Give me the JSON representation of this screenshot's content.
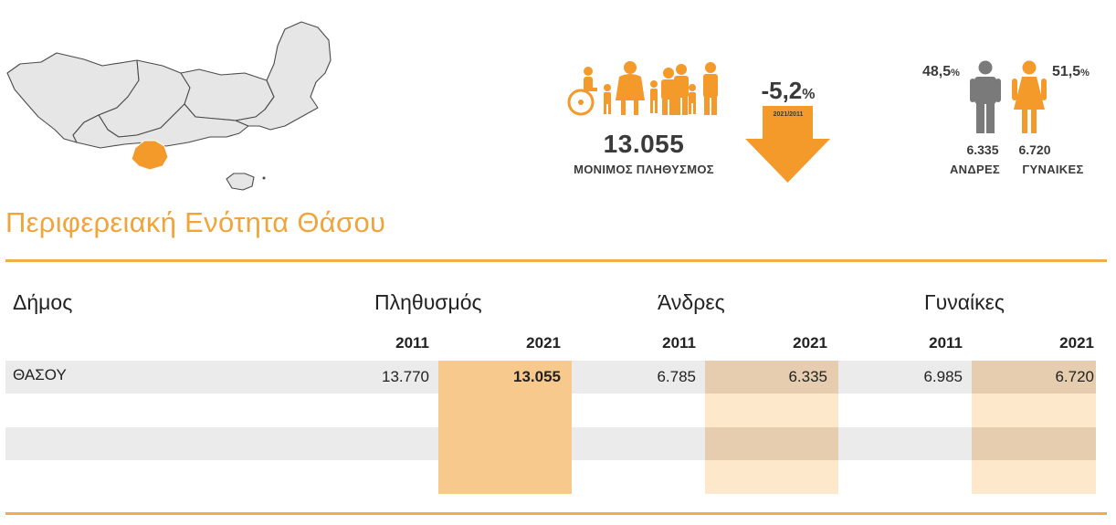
{
  "header": {
    "population_value": "13.055",
    "population_label": "ΜΟΝΙΜΟΣ ΠΛΗΘΥΣΜΟΣ",
    "change_value": "-5,2",
    "change_unit": "%",
    "change_period": "2021/2011",
    "men_percent": "48,5",
    "women_percent": "51,5",
    "percent_sign": "%",
    "men_count": "6.335",
    "women_count": "6.720",
    "men_label": "ΑΝΔΡΕΣ",
    "women_label": "ΓΥΝΑΙΚΕΣ"
  },
  "title": "Περιφερειακή Ενότητα Θάσου",
  "table": {
    "col_municipality": "Δήμος",
    "col_population": "Πληθυσμός",
    "col_men": "Άνδρες",
    "col_women": "Γυναίκες",
    "years": [
      "2011",
      "2021"
    ],
    "rows": [
      {
        "name": "ΘΑΣΟΥ",
        "pop_2011": "13.770",
        "pop_2021": "13.055",
        "men_2011": "6.785",
        "men_2021": "6.335",
        "women_2011": "6.985",
        "women_2021": "6.720"
      }
    ]
  },
  "colors": {
    "accent": "#f39a2b",
    "title": "#f0a43a",
    "icon_gray": "#7a7a7a",
    "highlight_strong": "#f8c98d",
    "highlight_light": "#fde8cc"
  }
}
